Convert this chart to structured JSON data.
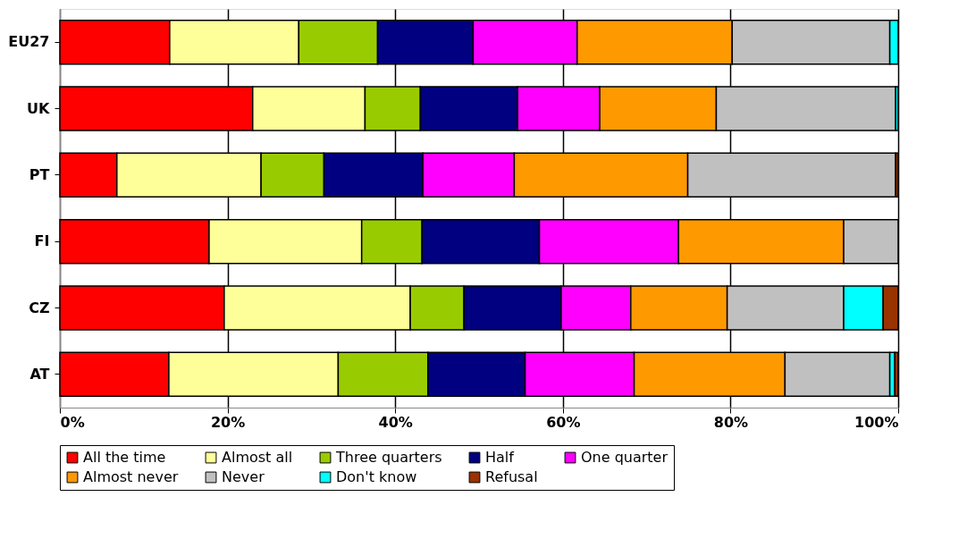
{
  "chart_data": {
    "type": "bar",
    "orientation": "horizontal",
    "stacked": true,
    "categories": [
      "EU27",
      "UK",
      "PT",
      "FI",
      "CZ",
      "AT"
    ],
    "series": [
      {
        "name": "All the time",
        "color": "#ff0000",
        "values": [
          13.1,
          23.0,
          6.8,
          17.8,
          19.6,
          13.0
        ]
      },
      {
        "name": "Almost all",
        "color": "#ffff99",
        "values": [
          15.4,
          13.4,
          17.2,
          18.2,
          22.2,
          20.2
        ]
      },
      {
        "name": "Three quarters",
        "color": "#99cc00",
        "values": [
          9.4,
          6.6,
          7.5,
          7.2,
          6.4,
          10.7
        ]
      },
      {
        "name": "Half",
        "color": "#000080",
        "values": [
          11.4,
          11.6,
          11.8,
          14.0,
          11.6,
          11.6
        ]
      },
      {
        "name": "One quarter",
        "color": "#ff00ff",
        "values": [
          12.4,
          9.8,
          10.9,
          16.6,
          8.3,
          13.0
        ]
      },
      {
        "name": "Almost never",
        "color": "#ff9900",
        "values": [
          18.5,
          13.9,
          20.7,
          19.7,
          11.5,
          18.0
        ]
      },
      {
        "name": "Never",
        "color": "#c0c0c0",
        "values": [
          18.8,
          21.4,
          24.8,
          6.5,
          13.9,
          12.5
        ]
      },
      {
        "name": "Don't know",
        "color": "#00ffff",
        "values": [
          1.0,
          0.3,
          null,
          null,
          4.7,
          0.6
        ]
      },
      {
        "name": "Refusal",
        "color": "#993300",
        "values": [
          null,
          null,
          0.3,
          null,
          1.8,
          0.4
        ]
      }
    ],
    "xlim": [
      0,
      100
    ],
    "xticks": [
      {
        "value": 0,
        "label": "0%"
      },
      {
        "value": 20,
        "label": "20%"
      },
      {
        "value": 40,
        "label": "40%"
      },
      {
        "value": 60,
        "label": "60%"
      },
      {
        "value": 80,
        "label": "80%"
      },
      {
        "value": 100,
        "label": "100%"
      }
    ],
    "grid": "x",
    "legend": "bottom"
  }
}
